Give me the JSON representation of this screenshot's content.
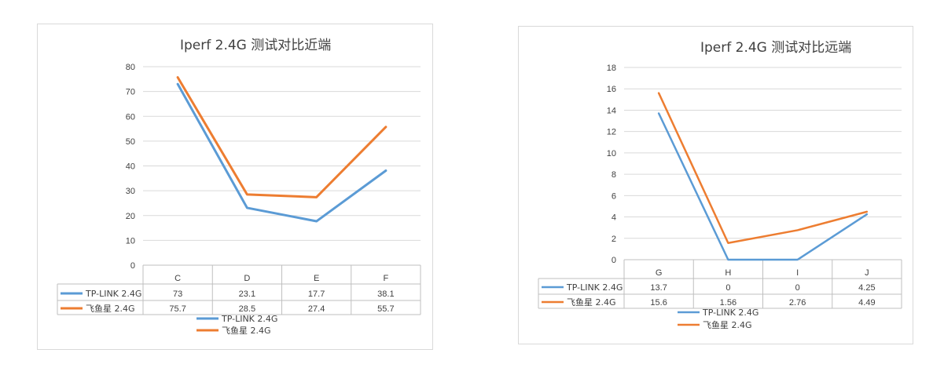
{
  "charts": [
    {
      "id": "left",
      "chart_data": {
        "type": "line",
        "title": "Iperf 2.4G 测试对比近端",
        "categories": [
          "C",
          "D",
          "E",
          "F"
        ],
        "ylim": [
          0,
          80
        ],
        "yticks": [
          0,
          10,
          20,
          30,
          40,
          50,
          60,
          70,
          80
        ],
        "grid": true,
        "legend": "bottom",
        "series": [
          {
            "name": "TP-LINK  2.4G",
            "color": "#5b9bd5",
            "values": [
              73,
              23.1,
              17.7,
              38.1
            ],
            "labels": [
              "73",
              "23.1",
              "17.7",
              "38.1"
            ]
          },
          {
            "name": "飞鱼星 2.4G",
            "color": "#ed7d31",
            "values": [
              75.7,
              28.5,
              27.4,
              55.7
            ],
            "labels": [
              "75.7",
              "28.5",
              "27.4",
              "55.7"
            ]
          }
        ]
      }
    },
    {
      "id": "right",
      "chart_data": {
        "type": "line",
        "title": "Iperf 2.4G 测试对比远端",
        "categories": [
          "G",
          "H",
          "I",
          "J"
        ],
        "ylim": [
          0,
          18
        ],
        "yticks": [
          0,
          2,
          4,
          6,
          8,
          10,
          12,
          14,
          16,
          18
        ],
        "grid": true,
        "legend": "bottom",
        "series": [
          {
            "name": "TP-LINK  2.4G",
            "color": "#5b9bd5",
            "values": [
              13.7,
              0,
              0,
              4.25
            ],
            "labels": [
              "13.7",
              "0",
              "0",
              "4.25"
            ]
          },
          {
            "name": "飞鱼星 2.4G",
            "color": "#ed7d31",
            "values": [
              15.6,
              1.56,
              2.76,
              4.49
            ],
            "labels": [
              "15.6",
              "1.56",
              "2.76",
              "4.49"
            ]
          }
        ]
      }
    }
  ]
}
